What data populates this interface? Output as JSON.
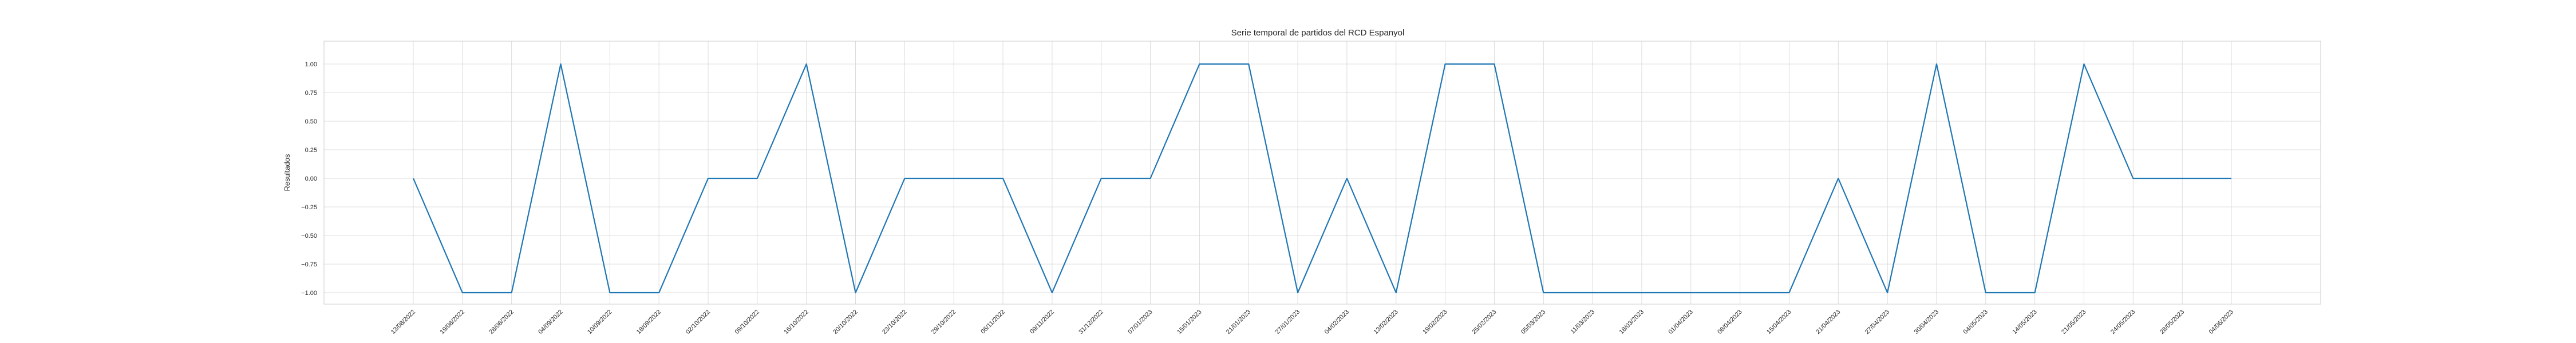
{
  "chart_data": {
    "type": "line",
    "title": "Serie temporal de partidos del RCD Espanyol",
    "xlabel": "",
    "ylabel": "Resultados",
    "ylim": [
      -1.1,
      1.2
    ],
    "yticks": [
      -1.0,
      -0.75,
      -0.5,
      -0.25,
      0.0,
      0.25,
      0.5,
      0.75,
      1.0
    ],
    "ytick_labels": [
      "−1.00",
      "−0.75",
      "−0.50",
      "−0.25",
      "0.00",
      "0.25",
      "0.50",
      "0.75",
      "1.00"
    ],
    "grid": true,
    "color": "#1f77b4",
    "x": [
      "13/08/2022",
      "19/08/2022",
      "28/08/2022",
      "04/09/2022",
      "10/09/2022",
      "18/09/2022",
      "02/10/2022",
      "09/10/2022",
      "16/10/2022",
      "20/10/2022",
      "23/10/2022",
      "29/10/2022",
      "06/11/2022",
      "09/11/2022",
      "31/12/2022",
      "07/01/2023",
      "15/01/2023",
      "21/01/2023",
      "27/01/2023",
      "04/02/2023",
      "13/02/2023",
      "19/02/2023",
      "25/02/2023",
      "05/03/2023",
      "11/03/2023",
      "18/03/2023",
      "01/04/2023",
      "08/04/2023",
      "15/04/2023",
      "21/04/2023",
      "27/04/2023",
      "30/04/2023",
      "04/05/2023",
      "14/05/2023",
      "21/05/2023",
      "24/05/2023",
      "28/05/2023",
      "04/06/2023"
    ],
    "values": [
      0,
      -1,
      -1,
      1,
      -1,
      -1,
      0,
      0,
      1,
      -1,
      0,
      0,
      0,
      -1,
      0,
      0,
      1,
      1,
      -1,
      0,
      -1,
      1,
      1,
      -1,
      -1,
      -1,
      -1,
      -1,
      -1,
      0,
      -1,
      1,
      -1,
      -1,
      1,
      0,
      0,
      0
    ]
  }
}
